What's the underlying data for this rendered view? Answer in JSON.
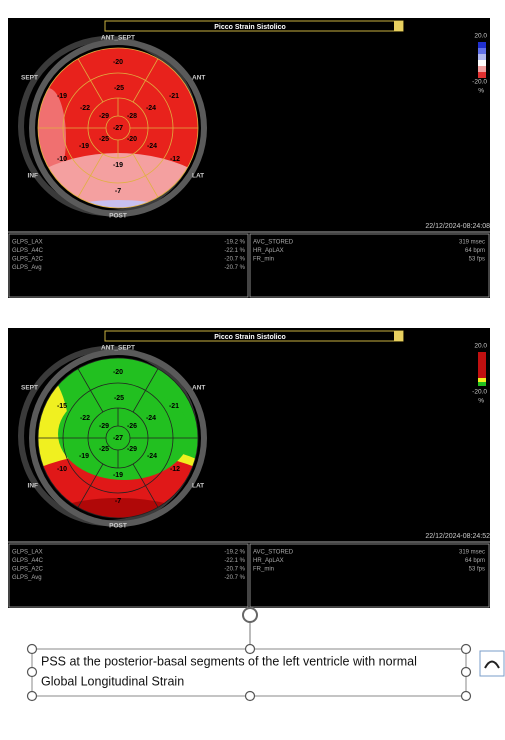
{
  "panels": [
    {
      "title": "Picco Strain Sistolico",
      "labels": {
        "ant_sept": "ANT_SEPT",
        "ant": "ANT",
        "lat": "LAT",
        "post": "POST",
        "inf": "INF",
        "sept": "SEPT"
      },
      "segments": [
        "-20",
        "-21",
        "-12",
        "-7",
        "-10",
        "-19",
        "-25",
        "-24",
        "-24",
        "-19",
        "-19",
        "-22",
        "-28",
        "-20",
        "-25",
        "-29",
        "-27"
      ],
      "scale": {
        "max": "20.0",
        "min": "-20.0",
        "unit": "%"
      },
      "timestamp": "22/12/2024-08:24:08",
      "measures": [
        [
          "GLPS_LAX",
          "-19.2 %"
        ],
        [
          "GLPS_A4C",
          "-22.1 %"
        ],
        [
          "GLPS_A2C",
          "-20.7 %"
        ],
        [
          "GLPS_Avg",
          "-20.7 %"
        ]
      ],
      "info": [
        [
          "AVC_STORED",
          "319 msec"
        ],
        [
          "HR_ApLAX",
          "64 bpm"
        ],
        [
          "FR_min",
          "53 fps"
        ]
      ]
    },
    {
      "title": "Picco Strain Sistolico",
      "labels": {
        "ant_sept": "ANT_SEPT",
        "ant": "ANT",
        "lat": "LAT",
        "post": "POST",
        "inf": "INF",
        "sept": "SEPT"
      },
      "segments": [
        "-20",
        "-21",
        "-12",
        "-7",
        "-10",
        "-15",
        "-25",
        "-24",
        "-24",
        "-19",
        "-19",
        "-22",
        "-26",
        "-29",
        "-25",
        "-29",
        "-27"
      ],
      "scale": {
        "max": "20.0",
        "min": "-20.0",
        "unit": "%"
      },
      "timestamp": "22/12/2024-08:24:52",
      "measures": [
        [
          "GLPS_LAX",
          "-19.2 %"
        ],
        [
          "GLPS_A4C",
          "-22.1 %"
        ],
        [
          "GLPS_A2C",
          "-20.7 %"
        ],
        [
          "GLPS_Avg",
          "-20.7 %"
        ]
      ],
      "info": [
        [
          "AVC_STORED",
          "319 msec"
        ],
        [
          "HR_ApLAX",
          "64 bpm"
        ],
        [
          "FR_min",
          "53 fps"
        ]
      ]
    }
  ],
  "caption": {
    "lines": [
      "PSS at the posterior-basal segments of the left ventricle with normal",
      "Global Longitudinal Strain"
    ]
  }
}
